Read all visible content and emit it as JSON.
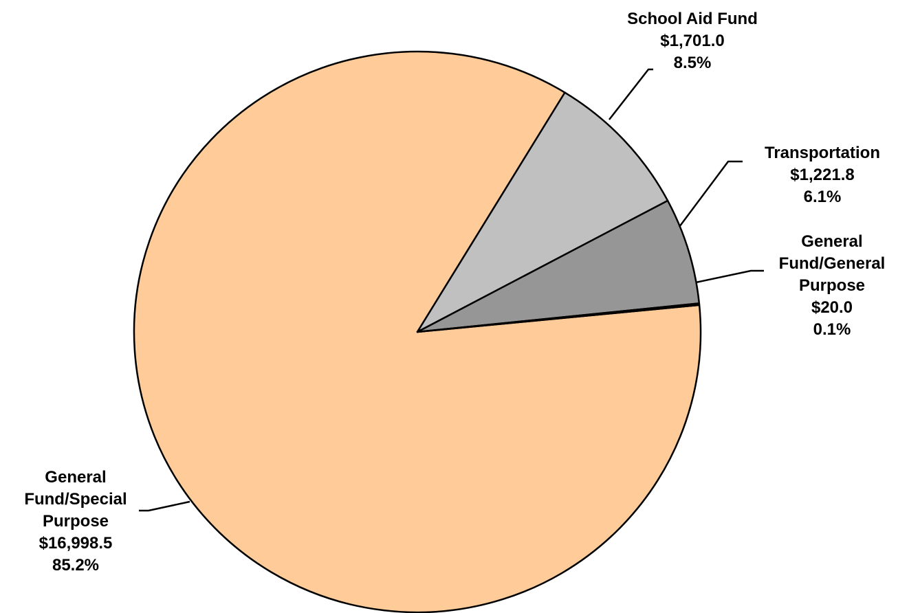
{
  "chart_data": {
    "type": "pie",
    "slices": [
      {
        "label": "General Fund/Special Purpose",
        "display_lines": [
          "General",
          "Fund/Special",
          "Purpose"
        ],
        "value_text": "$16,998.5",
        "pct_text": "85.2%",
        "value": 16998.5,
        "percent": 85.2,
        "color": "#FFCC99"
      },
      {
        "label": "School Aid Fund",
        "display_lines": [
          "School Aid Fund"
        ],
        "value_text": "$1,701.0",
        "pct_text": "8.5%",
        "value": 1701.0,
        "percent": 8.5,
        "color": "#C0C0C0"
      },
      {
        "label": "Transportation",
        "display_lines": [
          "Transportation"
        ],
        "value_text": "$1,221.8",
        "pct_text": "6.1%",
        "value": 1221.8,
        "percent": 6.1,
        "color": "#969696"
      },
      {
        "label": "General Fund/General Purpose",
        "display_lines": [
          "General",
          "Fund/General",
          "Purpose"
        ],
        "value_text": "$20.0",
        "pct_text": "0.1%",
        "value": 20.0,
        "percent": 0.1,
        "color": "#333333"
      }
    ]
  }
}
